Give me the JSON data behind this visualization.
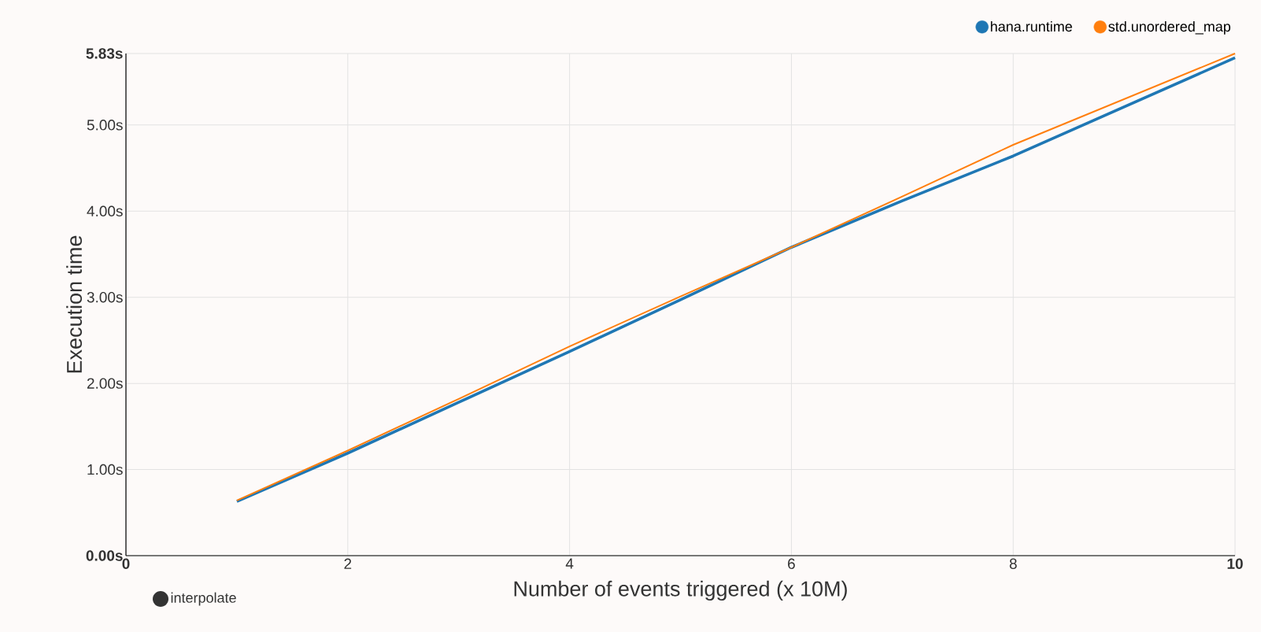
{
  "chart_data": {
    "type": "line",
    "xlabel": "Number of events triggered (x 10M)",
    "ylabel": "Execution time",
    "x": [
      1,
      2,
      3,
      4,
      5,
      6,
      7,
      8,
      9,
      10
    ],
    "series": [
      {
        "name": "hana.runtime",
        "color": "#1f77b4",
        "values": [
          0.63,
          1.19,
          1.78,
          2.37,
          2.97,
          3.58,
          4.12,
          4.64,
          5.21,
          5.78
        ]
      },
      {
        "name": "std.unordered_map",
        "color": "#ff7f0e",
        "values": [
          0.64,
          1.22,
          1.82,
          2.43,
          3.01,
          3.58,
          4.17,
          4.77,
          5.3,
          5.83
        ]
      }
    ],
    "xlim": [
      0,
      10
    ],
    "xticks": [
      0,
      2,
      4,
      6,
      8,
      10
    ],
    "ylim": [
      0,
      5.83
    ],
    "yticks": [
      {
        "value": 0,
        "label": "0.00s"
      },
      {
        "value": 1,
        "label": "1.00s"
      },
      {
        "value": 2,
        "label": "2.00s"
      },
      {
        "value": 3,
        "label": "3.00s"
      },
      {
        "value": 4,
        "label": "4.00s"
      },
      {
        "value": 5,
        "label": "5.00s"
      },
      {
        "value": 5.83,
        "label": "5.83s"
      }
    ],
    "grid": true,
    "legend": "top right",
    "marker": "none",
    "line_style": "solid",
    "annotations": [
      "interpolate"
    ]
  }
}
